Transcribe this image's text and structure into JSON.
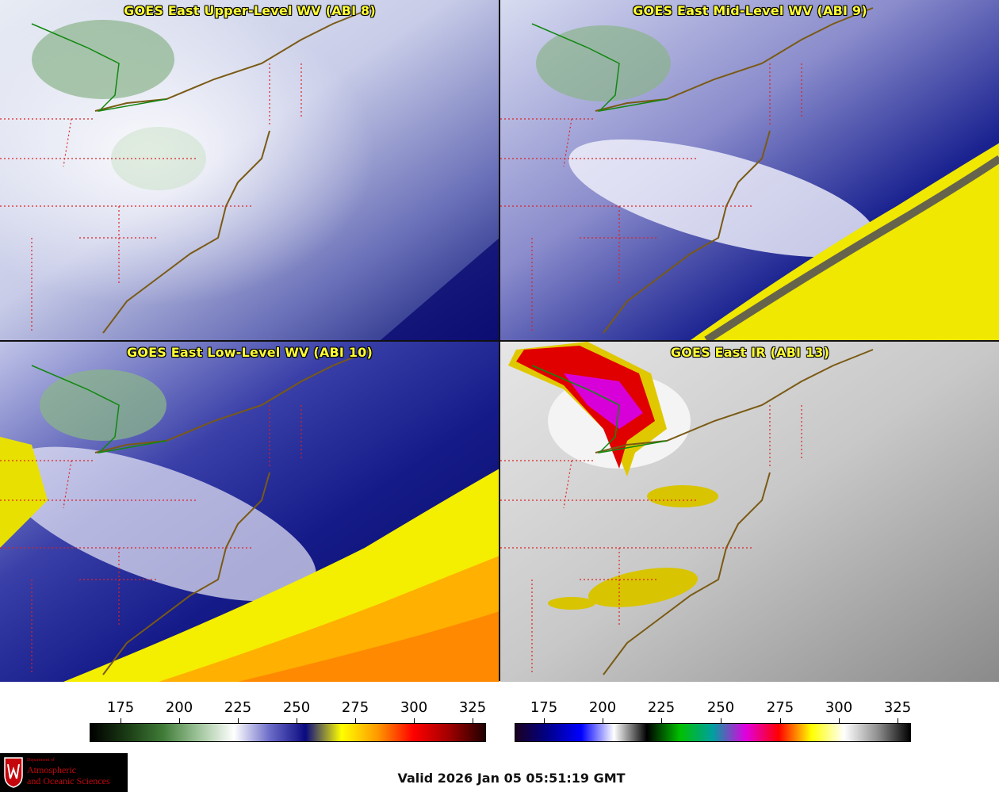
{
  "panels": {
    "upper": {
      "title": "GOES East Upper-Level WV (ABI 8)"
    },
    "mid": {
      "title": "GOES East Mid-Level WV (ABI 9)"
    },
    "low": {
      "title": "GOES East Low-Level WV (ABI 10)"
    },
    "ir": {
      "title": "GOES East IR (ABI 13)"
    }
  },
  "colorbars": {
    "wv": {
      "ticks": [
        "175",
        "200",
        "225",
        "250",
        "275",
        "300",
        "325"
      ],
      "colors": [
        "#000000",
        "#1a3a14",
        "#3e7a36",
        "#9ec49a",
        "#ffffff",
        "#6a6ac8",
        "#0a0a80",
        "#ffff00",
        "#ff9a00",
        "#ff0000",
        "#a00000",
        "#200000"
      ]
    },
    "ir": {
      "ticks": [
        "175",
        "200",
        "225",
        "250",
        "275",
        "300",
        "325"
      ],
      "colors": [
        "#1a0020",
        "#00008c",
        "#0000ff",
        "#ffffff",
        "#000000",
        "#00c000",
        "#00a0a0",
        "#e000e0",
        "#ff0000",
        "#ffff00",
        "#ffffff",
        "#909090",
        "#000000"
      ]
    }
  },
  "logo": {
    "department": "Department of",
    "line1": "Atmospheric",
    "line2": "and Oceanic Sciences"
  },
  "valid_time": "Valid 2026 Jan 05 05:51:19 GMT",
  "map_colors": {
    "coastline": "#7a5a14",
    "state_border": "#dd2222",
    "lake_border": "#118811"
  }
}
